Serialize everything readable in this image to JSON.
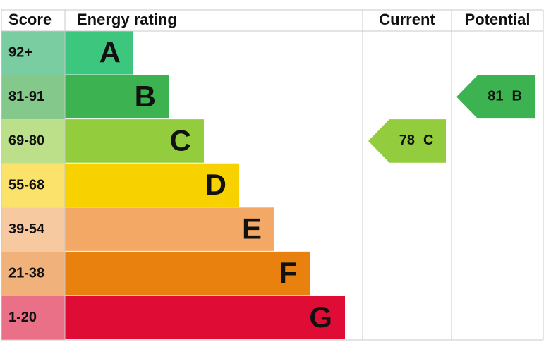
{
  "headers": {
    "score": "Score",
    "rating": "Energy rating",
    "current": "Current",
    "potential": "Potential"
  },
  "bands": [
    {
      "score": "92+",
      "letter": "A",
      "color": "#3cc67e",
      "score_color": "#79cda0"
    },
    {
      "score": "81-91",
      "letter": "B",
      "color": "#3cb250",
      "score_color": "#84c98b"
    },
    {
      "score": "69-80",
      "letter": "C",
      "color": "#93cc3c",
      "score_color": "#bce08a"
    },
    {
      "score": "55-68",
      "letter": "D",
      "color": "#f7d200",
      "score_color": "#fbe26a"
    },
    {
      "score": "39-54",
      "letter": "E",
      "color": "#f3a965",
      "score_color": "#f7c9a0"
    },
    {
      "score": "21-38",
      "letter": "F",
      "color": "#e8810e",
      "score_color": "#f0b27a"
    },
    {
      "score": "1-20",
      "letter": "G",
      "color": "#df0c36",
      "score_color": "#ea7087"
    }
  ],
  "current": {
    "value": 78,
    "letter": "C"
  },
  "potential": {
    "value": 81,
    "letter": "B"
  }
}
